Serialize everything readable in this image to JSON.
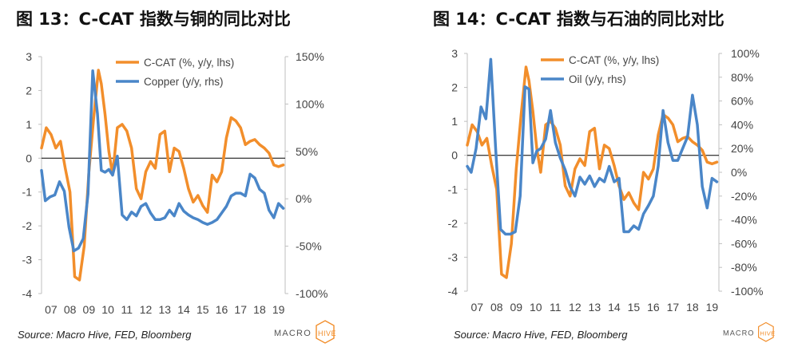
{
  "fig13": {
    "title": "图 13：C-CAT 指数与铜的同比对比",
    "source": "Source: Macro Hive, FED, Bloomberg",
    "logo": "MACROHIVE"
  },
  "fig14": {
    "title": "图 14：C-CAT 指数与石油的同比对比",
    "source": "Source: Macro Hive, FED, Bloomberg",
    "logo": "MACROHIVE"
  },
  "colors": {
    "ccat": "#f28e2b",
    "other": "#4a86c8",
    "axis": "#bfbfbf",
    "logo_accent": "#f28e2b",
    "logo_text": "#555555"
  },
  "chart_data": [
    {
      "id": "fig13",
      "type": "line",
      "title": "",
      "x_ticks": [
        "07",
        "08",
        "09",
        "10",
        "11",
        "12",
        "13",
        "14",
        "15",
        "16",
        "17",
        "18",
        "19"
      ],
      "x_range": [
        2007.0,
        2019.85
      ],
      "y_left": {
        "ticks": [
          "3",
          "2",
          "1",
          "0",
          "-1",
          "-2",
          "-3",
          "-4"
        ],
        "range": [
          -4,
          3
        ]
      },
      "y_right": {
        "ticks": [
          "150%",
          "100%",
          "50%",
          "0%",
          "-50%",
          "-100%"
        ],
        "range": [
          -100,
          150
        ]
      },
      "grid": false,
      "legend_position": "top-right",
      "series": [
        {
          "name": "C-CAT (%, y/y, lhs)",
          "axis": "left",
          "color": "#f28e2b",
          "x": [
            2007.0,
            2007.25,
            2007.5,
            2007.75,
            2008.0,
            2008.25,
            2008.5,
            2008.75,
            2009.0,
            2009.25,
            2009.5,
            2009.75,
            2010.0,
            2010.15,
            2010.35,
            2010.55,
            2010.75,
            2011.0,
            2011.25,
            2011.5,
            2011.75,
            2012.0,
            2012.25,
            2012.5,
            2012.75,
            2013.0,
            2013.25,
            2013.5,
            2013.75,
            2014.0,
            2014.25,
            2014.5,
            2014.75,
            2015.0,
            2015.25,
            2015.5,
            2015.75,
            2016.0,
            2016.25,
            2016.5,
            2016.75,
            2017.0,
            2017.25,
            2017.5,
            2017.75,
            2018.0,
            2018.25,
            2018.5,
            2018.75,
            2019.0,
            2019.25,
            2019.5,
            2019.75
          ],
          "y": [
            0.3,
            0.9,
            0.7,
            0.3,
            0.5,
            -0.3,
            -1.0,
            -3.5,
            -3.6,
            -2.6,
            -0.4,
            1.2,
            2.6,
            2.2,
            1.3,
            0.2,
            -0.5,
            0.9,
            1.0,
            0.8,
            0.3,
            -0.9,
            -1.2,
            -0.4,
            -0.1,
            -0.3,
            0.7,
            0.8,
            -0.4,
            0.3,
            0.2,
            -0.3,
            -0.9,
            -1.3,
            -1.1,
            -1.4,
            -1.6,
            -0.5,
            -0.7,
            -0.4,
            0.6,
            1.2,
            1.1,
            0.9,
            0.4,
            0.5,
            0.55,
            0.4,
            0.3,
            0.15,
            -0.2,
            -0.25,
            -0.2
          ]
        },
        {
          "name": "Copper (y/y, rhs)",
          "axis": "right",
          "color": "#4a86c8",
          "x": [
            2007.0,
            2007.2,
            2007.45,
            2007.7,
            2007.95,
            2008.2,
            2008.45,
            2008.7,
            2008.95,
            2009.2,
            2009.45,
            2009.7,
            2009.95,
            2010.15,
            2010.35,
            2010.55,
            2010.75,
            2011.0,
            2011.25,
            2011.5,
            2011.75,
            2012.0,
            2012.25,
            2012.5,
            2012.75,
            2013.0,
            2013.25,
            2013.5,
            2013.75,
            2014.0,
            2014.25,
            2014.5,
            2014.75,
            2015.0,
            2015.25,
            2015.5,
            2015.75,
            2016.0,
            2016.25,
            2016.5,
            2016.75,
            2017.0,
            2017.25,
            2017.5,
            2017.75,
            2018.0,
            2018.25,
            2018.5,
            2018.75,
            2019.0,
            2019.25,
            2019.5,
            2019.75
          ],
          "y": [
            30,
            -2,
            2,
            4,
            18,
            8,
            -30,
            -55,
            -52,
            -42,
            5,
            135,
            90,
            30,
            28,
            31,
            25,
            45,
            -17,
            -22,
            -14,
            -18,
            -8,
            -5,
            -15,
            -22,
            -22,
            -20,
            -12,
            -18,
            -5,
            -13,
            -17,
            -20,
            -22,
            -25,
            -27,
            -25,
            -22,
            -15,
            -8,
            3,
            6,
            6,
            3,
            26,
            22,
            10,
            6,
            -12,
            -20,
            -5,
            -10
          ]
        }
      ]
    },
    {
      "id": "fig14",
      "type": "line",
      "title": "",
      "x_ticks": [
        "07",
        "08",
        "09",
        "10",
        "11",
        "12",
        "13",
        "14",
        "15",
        "16",
        "17",
        "18",
        "19"
      ],
      "x_range": [
        2007.0,
        2019.85
      ],
      "y_left": {
        "ticks": [
          "3",
          "2",
          "1",
          "0",
          "-1",
          "-2",
          "-3",
          "-4"
        ],
        "range": [
          -4,
          3
        ]
      },
      "y_right": {
        "ticks": [
          "100%",
          "80%",
          "60%",
          "40%",
          "20%",
          "0%",
          "-20%",
          "-40%",
          "-60%",
          "-80%",
          "-100%"
        ],
        "range": [
          -100,
          100
        ]
      },
      "grid": false,
      "legend_position": "top-right",
      "series": [
        {
          "name": "C-CAT (%, y/y, lhs)",
          "axis": "left",
          "color": "#f28e2b",
          "x": [
            2007.0,
            2007.25,
            2007.5,
            2007.75,
            2008.0,
            2008.25,
            2008.5,
            2008.75,
            2009.0,
            2009.25,
            2009.5,
            2009.75,
            2010.0,
            2010.15,
            2010.35,
            2010.55,
            2010.75,
            2011.0,
            2011.25,
            2011.5,
            2011.75,
            2012.0,
            2012.25,
            2012.5,
            2012.75,
            2013.0,
            2013.25,
            2013.5,
            2013.75,
            2014.0,
            2014.25,
            2014.5,
            2014.75,
            2015.0,
            2015.25,
            2015.5,
            2015.75,
            2016.0,
            2016.25,
            2016.5,
            2016.75,
            2017.0,
            2017.25,
            2017.5,
            2017.75,
            2018.0,
            2018.25,
            2018.5,
            2018.75,
            2019.0,
            2019.25,
            2019.5,
            2019.75
          ],
          "y": [
            0.3,
            0.9,
            0.7,
            0.3,
            0.5,
            -0.3,
            -1.0,
            -3.5,
            -3.6,
            -2.6,
            -0.4,
            1.2,
            2.6,
            2.2,
            1.3,
            0.2,
            -0.5,
            0.9,
            1.0,
            0.8,
            0.3,
            -0.9,
            -1.2,
            -0.4,
            -0.1,
            -0.3,
            0.7,
            0.8,
            -0.4,
            0.3,
            0.2,
            -0.3,
            -0.9,
            -1.3,
            -1.1,
            -1.4,
            -1.6,
            -0.5,
            -0.7,
            -0.4,
            0.6,
            1.2,
            1.1,
            0.9,
            0.4,
            0.5,
            0.55,
            0.4,
            0.3,
            0.15,
            -0.2,
            -0.25,
            -0.2
          ]
        },
        {
          "name": "Oil (y/y, rhs)",
          "axis": "right",
          "color": "#4a86c8",
          "x": [
            2007.0,
            2007.2,
            2007.45,
            2007.7,
            2007.95,
            2008.2,
            2008.45,
            2008.7,
            2008.95,
            2009.2,
            2009.45,
            2009.7,
            2009.95,
            2010.15,
            2010.35,
            2010.55,
            2010.75,
            2011.0,
            2011.25,
            2011.5,
            2011.75,
            2012.0,
            2012.25,
            2012.5,
            2012.75,
            2013.0,
            2013.25,
            2013.5,
            2013.75,
            2014.0,
            2014.25,
            2014.5,
            2014.75,
            2015.0,
            2015.25,
            2015.5,
            2015.75,
            2016.0,
            2016.25,
            2016.5,
            2016.75,
            2017.0,
            2017.25,
            2017.5,
            2017.75,
            2018.0,
            2018.25,
            2018.5,
            2018.75,
            2019.0,
            2019.25,
            2019.5,
            2019.75
          ],
          "y": [
            5,
            0,
            20,
            55,
            45,
            95,
            20,
            -48,
            -52,
            -52,
            -50,
            -20,
            72,
            70,
            8,
            18,
            20,
            28,
            52,
            25,
            12,
            2,
            -12,
            -20,
            -4,
            -10,
            -3,
            -12,
            -5,
            -8,
            5,
            -8,
            -5,
            -50,
            -50,
            -45,
            -48,
            -35,
            -28,
            -20,
            5,
            52,
            25,
            10,
            10,
            20,
            30,
            65,
            40,
            -12,
            -30,
            -5,
            -8
          ]
        }
      ]
    }
  ]
}
